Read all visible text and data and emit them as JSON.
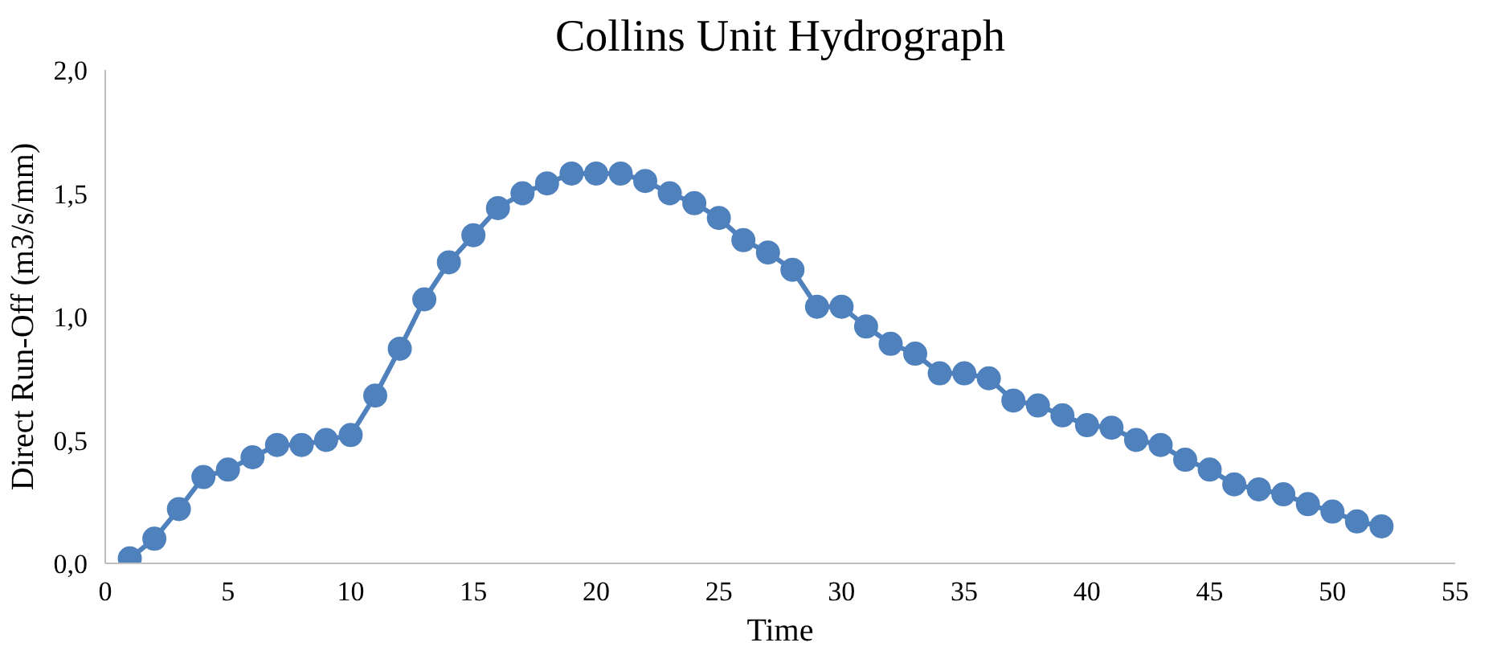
{
  "chart_data": {
    "type": "line",
    "title": "Collins Unit Hydrograph",
    "xlabel": "Time",
    "ylabel": "Direct Run-Off (m3/s/mm)",
    "x": [
      1,
      2,
      3,
      4,
      5,
      6,
      7,
      8,
      9,
      10,
      11,
      12,
      13,
      14,
      15,
      16,
      17,
      18,
      19,
      20,
      21,
      22,
      23,
      24,
      25,
      26,
      27,
      28,
      29,
      30,
      31,
      32,
      33,
      34,
      35,
      36,
      37,
      38,
      39,
      40,
      41,
      42,
      43,
      44,
      45,
      46,
      47,
      48,
      49,
      50,
      51,
      52
    ],
    "series": [
      {
        "color": "#4f81bd",
        "values": [
          0.02,
          0.1,
          0.22,
          0.35,
          0.38,
          0.43,
          0.48,
          0.48,
          0.5,
          0.52,
          0.68,
          0.87,
          1.07,
          1.22,
          1.33,
          1.44,
          1.5,
          1.54,
          1.58,
          1.58,
          1.58,
          1.55,
          1.5,
          1.46,
          1.4,
          1.31,
          1.26,
          1.19,
          1.04,
          1.04,
          0.96,
          0.89,
          0.85,
          0.77,
          0.77,
          0.75,
          0.66,
          0.64,
          0.6,
          0.56,
          0.55,
          0.5,
          0.48,
          0.42,
          0.38,
          0.32,
          0.3,
          0.28,
          0.24,
          0.21,
          0.17,
          0.15
        ]
      }
    ],
    "xlim": [
      0,
      55
    ],
    "xticks": [
      0,
      5,
      10,
      15,
      20,
      25,
      30,
      35,
      40,
      45,
      50,
      55
    ],
    "ylim": [
      0,
      2
    ],
    "yticks": [
      {
        "value": 0,
        "label": "0,0"
      },
      {
        "value": 0.5,
        "label": "0,5"
      },
      {
        "value": 1,
        "label": "1,0"
      },
      {
        "value": 1.5,
        "label": "1,5"
      },
      {
        "value": 2,
        "label": "2,0"
      }
    ],
    "grid": false,
    "marker": "circle",
    "line_style": "solid"
  }
}
